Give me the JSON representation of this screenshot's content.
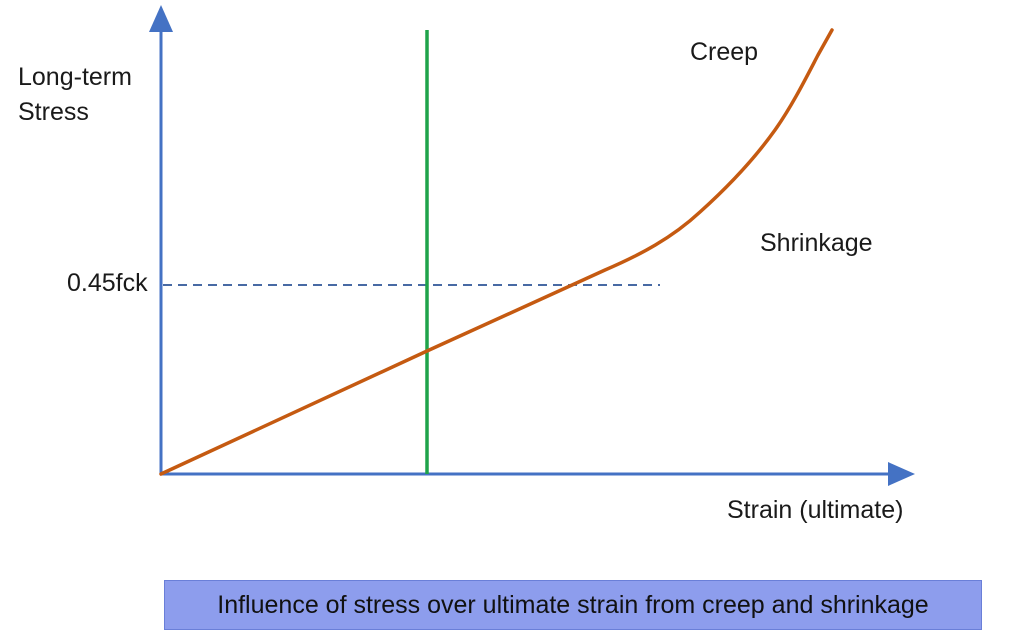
{
  "diagram": {
    "y_axis_label_lines": [
      "Long-term",
      "Stress"
    ],
    "x_axis_label": "Strain (ultimate)",
    "reference_line_label": "0.45fck",
    "curve_annotations": {
      "creep": "Creep",
      "shrinkage": "Shrinkage"
    },
    "caption": "Influence of stress over ultimate strain from creep and shrinkage"
  },
  "colors": {
    "axis": "#4472c4",
    "curve": "#c55a11",
    "vertical_marker": "#1fa34a",
    "reference_dashed": "#2e5597",
    "caption_background": "#8d9ded",
    "caption_border": "#6a7fd8"
  }
}
